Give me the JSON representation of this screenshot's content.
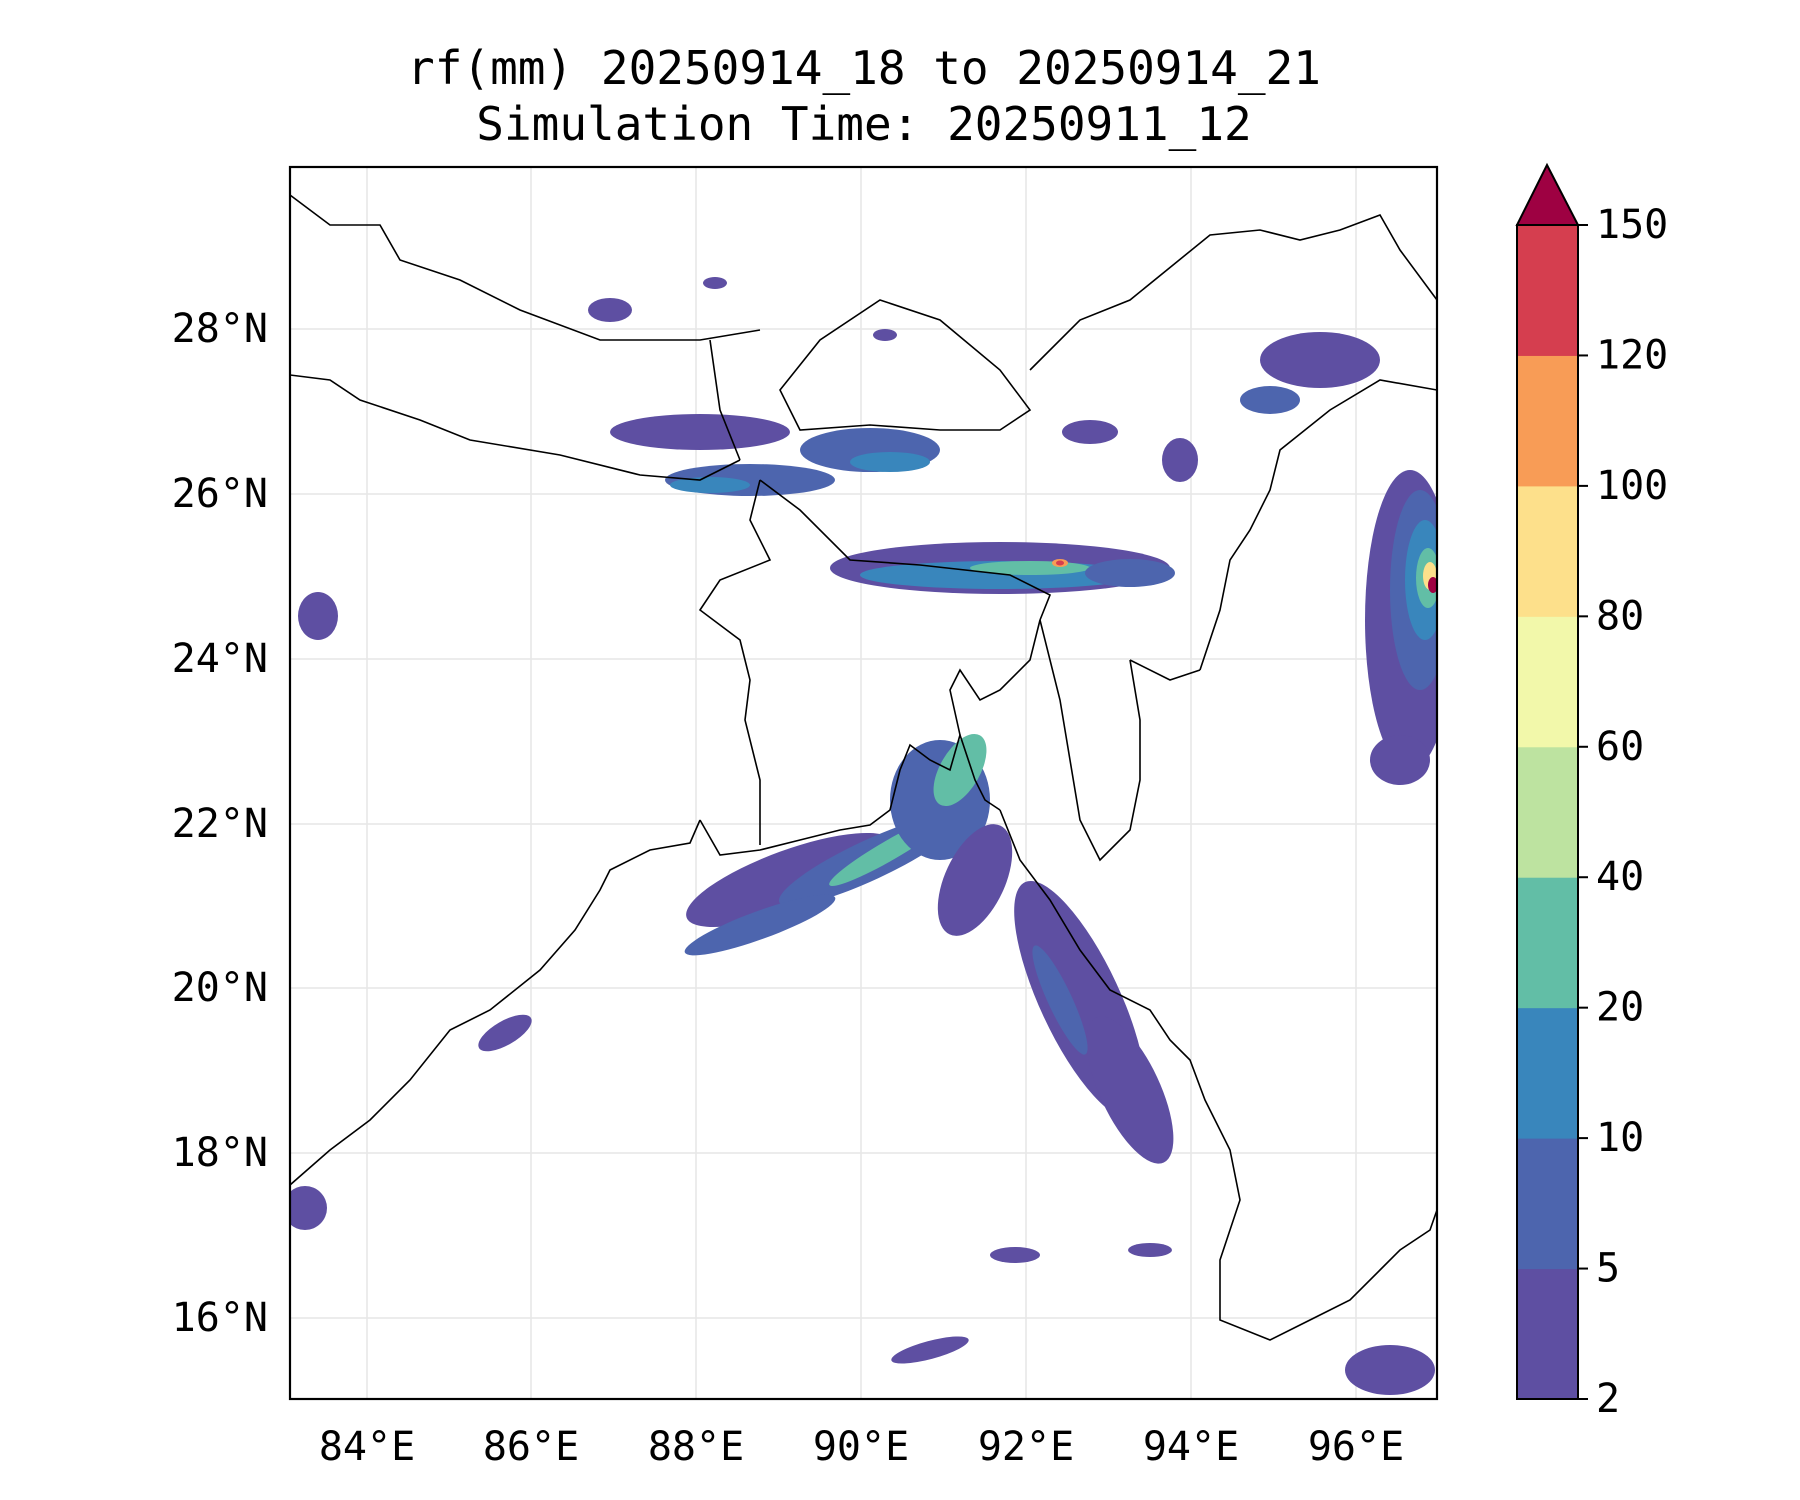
{
  "title": {
    "line1": "rf(mm) 20250914_18 to 20250914_21",
    "line2": "Simulation Time: 20250911_12"
  },
  "map": {
    "lon_range": [
      83.1,
      97.0
    ],
    "lat_range": [
      15.0,
      30.0
    ],
    "x_ticks": [
      "84°E",
      "86°E",
      "88°E",
      "90°E",
      "92°E",
      "94°E",
      "96°E"
    ],
    "y_ticks": [
      "16°N",
      "18°N",
      "20°N",
      "22°N",
      "24°N",
      "26°N",
      "28°N"
    ],
    "grid": true,
    "coastline_color": "#000000"
  },
  "colorbar": {
    "levels": [
      "2",
      "5",
      "10",
      "20",
      "40",
      "60",
      "80",
      "100",
      "120",
      "150"
    ],
    "colors": [
      "#5e4fa2",
      "#4d65ae",
      "#3986bc",
      "#62bea6",
      "#bde3a0",
      "#f2f8aa",
      "#fde08b",
      "#f89c56",
      "#d53e4f"
    ],
    "extend_color": "#9e0142",
    "extend": "max"
  }
}
